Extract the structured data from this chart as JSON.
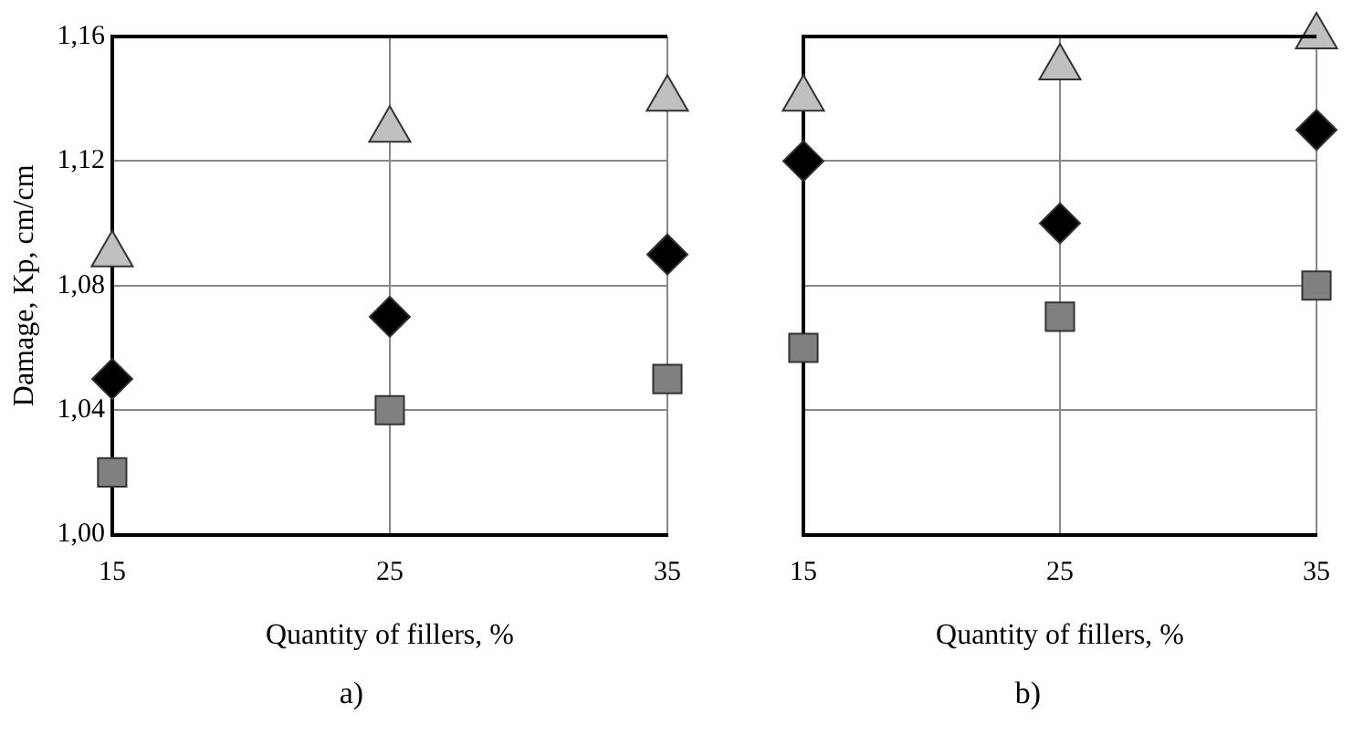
{
  "chart_data": [
    {
      "type": "scatter",
      "xlabel": "Quantity of fillers, %",
      "ylabel": "Damage, Kp, cm/cm",
      "x": [
        15,
        25,
        35
      ],
      "xlim": [
        15,
        35
      ],
      "xticks": [
        15,
        25,
        35
      ],
      "ylim": [
        1.0,
        1.16
      ],
      "yticks": [
        {
          "value": 1.0,
          "label": "1,00"
        },
        {
          "value": 1.04,
          "label": "1,04"
        },
        {
          "value": 1.08,
          "label": "1,08"
        },
        {
          "value": 1.12,
          "label": "1,12"
        },
        {
          "value": 1.16,
          "label": "1,16"
        }
      ],
      "grid": true,
      "annotations": [
        "a)"
      ],
      "series": [
        {
          "color": "#c0c0c0",
          "marker": "triangle",
          "values": [
            1.09,
            1.13,
            1.14
          ]
        },
        {
          "color": "#000000",
          "marker": "diamond",
          "values": [
            1.05,
            1.07,
            1.09
          ]
        },
        {
          "color": "#808080",
          "marker": "square",
          "values": [
            1.02,
            1.04,
            1.05
          ]
        }
      ]
    },
    {
      "type": "scatter",
      "xlabel": "Quantity of fillers, %",
      "x": [
        15,
        25,
        35
      ],
      "xlim": [
        15,
        35
      ],
      "xticks": [
        15,
        25,
        35
      ],
      "ylim": [
        1.0,
        1.16
      ],
      "yticks": [
        {
          "value": 1.0,
          "label": null
        },
        {
          "value": 1.04,
          "label": null
        },
        {
          "value": 1.08,
          "label": null
        },
        {
          "value": 1.12,
          "label": null
        },
        {
          "value": 1.16,
          "label": null
        }
      ],
      "grid": true,
      "tick_labels": "x",
      "annotations": [
        "b)"
      ],
      "series": [
        {
          "color": "#c0c0c0",
          "marker": "triangle",
          "values": [
            1.14,
            1.15,
            1.16
          ]
        },
        {
          "color": "#000000",
          "marker": "diamond",
          "values": [
            1.12,
            1.1,
            1.13
          ]
        },
        {
          "color": "#808080",
          "marker": "square",
          "values": [
            1.06,
            1.07,
            1.08
          ]
        }
      ]
    }
  ]
}
